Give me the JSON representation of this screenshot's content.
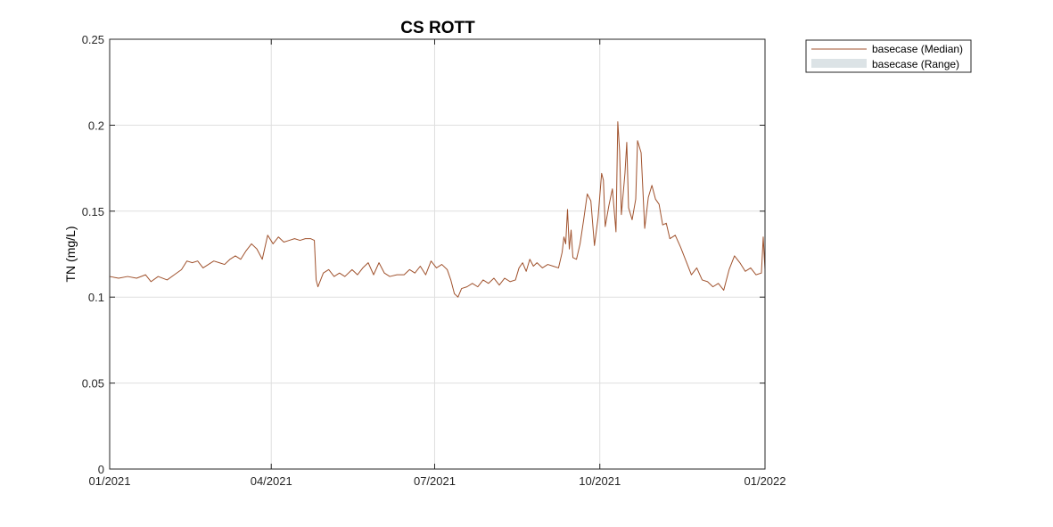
{
  "chart_data": {
    "type": "line",
    "title": "CS ROTT",
    "xlabel": "",
    "ylabel": "TN (mg/L)",
    "xlim": [
      "2021-01-01",
      "2022-01-01"
    ],
    "ylim": [
      0,
      0.25
    ],
    "x_ticks": [
      "2021-01-01",
      "2021-04-01",
      "2021-07-01",
      "2021-10-01",
      "2022-01-01"
    ],
    "x_tick_labels": [
      "01/2021",
      "04/2021",
      "07/2021",
      "10/2021",
      "01/2022"
    ],
    "y_ticks": [
      0,
      0.05,
      0.1,
      0.15,
      0.2,
      0.25
    ],
    "y_tick_labels": [
      "0",
      "0.05",
      "0.1",
      "0.15",
      "0.2",
      "0.25"
    ],
    "grid": true,
    "legend_position": "outside top-right",
    "series": [
      {
        "name": "basecase (Median)",
        "color": "#a0522d",
        "points": [
          [
            "2021-01-01",
            0.112
          ],
          [
            "2021-01-06",
            0.111
          ],
          [
            "2021-01-11",
            0.112
          ],
          [
            "2021-01-16",
            0.111
          ],
          [
            "2021-01-21",
            0.113
          ],
          [
            "2021-01-24",
            0.109
          ],
          [
            "2021-01-28",
            0.112
          ],
          [
            "2021-02-02",
            0.11
          ],
          [
            "2021-02-06",
            0.113
          ],
          [
            "2021-02-10",
            0.116
          ],
          [
            "2021-02-13",
            0.121
          ],
          [
            "2021-02-16",
            0.12
          ],
          [
            "2021-02-19",
            0.121
          ],
          [
            "2021-02-22",
            0.117
          ],
          [
            "2021-02-25",
            0.119
          ],
          [
            "2021-02-28",
            0.121
          ],
          [
            "2021-03-03",
            0.12
          ],
          [
            "2021-03-06",
            0.119
          ],
          [
            "2021-03-09",
            0.122
          ],
          [
            "2021-03-12",
            0.124
          ],
          [
            "2021-03-15",
            0.122
          ],
          [
            "2021-03-18",
            0.127
          ],
          [
            "2021-03-21",
            0.131
          ],
          [
            "2021-03-24",
            0.128
          ],
          [
            "2021-03-27",
            0.122
          ],
          [
            "2021-03-30",
            0.136
          ],
          [
            "2021-04-02",
            0.131
          ],
          [
            "2021-04-05",
            0.135
          ],
          [
            "2021-04-08",
            0.132
          ],
          [
            "2021-04-11",
            0.133
          ],
          [
            "2021-04-14",
            0.134
          ],
          [
            "2021-04-17",
            0.133
          ],
          [
            "2021-04-20",
            0.134
          ],
          [
            "2021-04-23",
            0.134
          ],
          [
            "2021-04-25",
            0.133
          ],
          [
            "2021-04-26",
            0.11
          ],
          [
            "2021-04-27",
            0.106
          ],
          [
            "2021-04-30",
            0.114
          ],
          [
            "2021-05-03",
            0.116
          ],
          [
            "2021-05-06",
            0.112
          ],
          [
            "2021-05-09",
            0.114
          ],
          [
            "2021-05-12",
            0.112
          ],
          [
            "2021-05-16",
            0.116
          ],
          [
            "2021-05-19",
            0.113
          ],
          [
            "2021-05-22",
            0.117
          ],
          [
            "2021-05-25",
            0.12
          ],
          [
            "2021-05-28",
            0.113
          ],
          [
            "2021-05-31",
            0.12
          ],
          [
            "2021-06-03",
            0.114
          ],
          [
            "2021-06-06",
            0.112
          ],
          [
            "2021-06-10",
            0.113
          ],
          [
            "2021-06-14",
            0.113
          ],
          [
            "2021-06-17",
            0.116
          ],
          [
            "2021-06-20",
            0.114
          ],
          [
            "2021-06-23",
            0.118
          ],
          [
            "2021-06-26",
            0.113
          ],
          [
            "2021-06-29",
            0.121
          ],
          [
            "2021-07-02",
            0.117
          ],
          [
            "2021-07-05",
            0.119
          ],
          [
            "2021-07-08",
            0.116
          ],
          [
            "2021-07-10",
            0.11
          ],
          [
            "2021-07-12",
            0.102
          ],
          [
            "2021-07-14",
            0.1
          ],
          [
            "2021-07-16",
            0.105
          ],
          [
            "2021-07-19",
            0.106
          ],
          [
            "2021-07-22",
            0.108
          ],
          [
            "2021-07-25",
            0.106
          ],
          [
            "2021-07-28",
            0.11
          ],
          [
            "2021-07-31",
            0.108
          ],
          [
            "2021-08-03",
            0.111
          ],
          [
            "2021-08-06",
            0.107
          ],
          [
            "2021-08-09",
            0.111
          ],
          [
            "2021-08-12",
            0.109
          ],
          [
            "2021-08-15",
            0.11
          ],
          [
            "2021-08-17",
            0.117
          ],
          [
            "2021-08-19",
            0.12
          ],
          [
            "2021-08-21",
            0.115
          ],
          [
            "2021-08-23",
            0.122
          ],
          [
            "2021-08-25",
            0.118
          ],
          [
            "2021-08-27",
            0.12
          ],
          [
            "2021-08-30",
            0.117
          ],
          [
            "2021-09-02",
            0.119
          ],
          [
            "2021-09-05",
            0.118
          ],
          [
            "2021-09-08",
            0.117
          ],
          [
            "2021-09-10",
            0.126
          ],
          [
            "2021-09-11",
            0.135
          ],
          [
            "2021-09-12",
            0.131
          ],
          [
            "2021-09-13",
            0.151
          ],
          [
            "2021-09-14",
            0.128
          ],
          [
            "2021-09-15",
            0.139
          ],
          [
            "2021-09-16",
            0.123
          ],
          [
            "2021-09-18",
            0.122
          ],
          [
            "2021-09-20",
            0.131
          ],
          [
            "2021-09-22",
            0.145
          ],
          [
            "2021-09-24",
            0.16
          ],
          [
            "2021-09-26",
            0.156
          ],
          [
            "2021-09-28",
            0.13
          ],
          [
            "2021-09-30",
            0.146
          ],
          [
            "2021-10-02",
            0.172
          ],
          [
            "2021-10-03",
            0.168
          ],
          [
            "2021-10-04",
            0.141
          ],
          [
            "2021-10-06",
            0.153
          ],
          [
            "2021-10-08",
            0.163
          ],
          [
            "2021-10-10",
            0.138
          ],
          [
            "2021-10-11",
            0.202
          ],
          [
            "2021-10-12",
            0.185
          ],
          [
            "2021-10-13",
            0.148
          ],
          [
            "2021-10-15",
            0.172
          ],
          [
            "2021-10-16",
            0.19
          ],
          [
            "2021-10-17",
            0.152
          ],
          [
            "2021-10-19",
            0.145
          ],
          [
            "2021-10-21",
            0.157
          ],
          [
            "2021-10-22",
            0.191
          ],
          [
            "2021-10-24",
            0.184
          ],
          [
            "2021-10-26",
            0.14
          ],
          [
            "2021-10-28",
            0.158
          ],
          [
            "2021-10-30",
            0.165
          ],
          [
            "2021-11-01",
            0.157
          ],
          [
            "2021-11-03",
            0.154
          ],
          [
            "2021-11-05",
            0.142
          ],
          [
            "2021-11-07",
            0.143
          ],
          [
            "2021-11-09",
            0.134
          ],
          [
            "2021-11-12",
            0.136
          ],
          [
            "2021-11-15",
            0.129
          ],
          [
            "2021-11-18",
            0.121
          ],
          [
            "2021-11-21",
            0.113
          ],
          [
            "2021-11-24",
            0.117
          ],
          [
            "2021-11-27",
            0.11
          ],
          [
            "2021-11-30",
            0.109
          ],
          [
            "2021-12-03",
            0.106
          ],
          [
            "2021-12-06",
            0.108
          ],
          [
            "2021-12-09",
            0.104
          ],
          [
            "2021-12-12",
            0.116
          ],
          [
            "2021-12-15",
            0.124
          ],
          [
            "2021-12-18",
            0.12
          ],
          [
            "2021-12-21",
            0.115
          ],
          [
            "2021-12-24",
            0.117
          ],
          [
            "2021-12-27",
            0.113
          ],
          [
            "2021-12-30",
            0.114
          ],
          [
            "2021-12-31",
            0.135
          ],
          [
            "2022-01-01",
            0.116
          ]
        ]
      },
      {
        "name": "basecase (Range)",
        "color": "#dce3e6",
        "points": []
      }
    ]
  }
}
